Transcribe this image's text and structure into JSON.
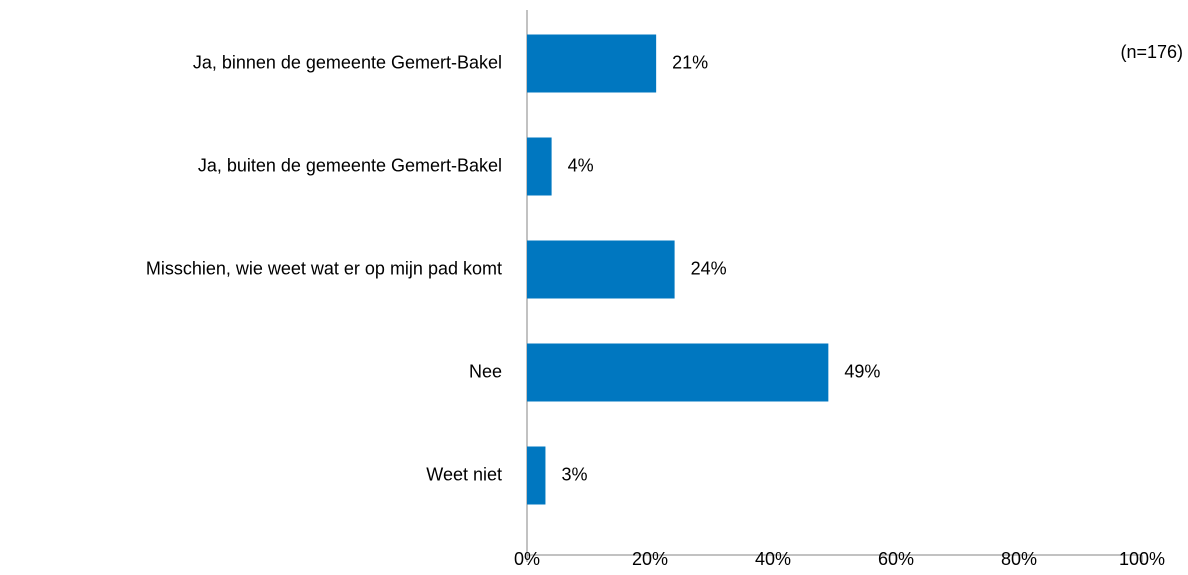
{
  "chart_data": {
    "type": "barh",
    "annotation": "(n=176)",
    "categories": [
      "Ja, binnen de gemeente Gemert-Bakel",
      "Ja, buiten de gemeente Gemert-Bakel",
      "Misschien, wie weet wat er op mijn pad komt",
      "Nee",
      "Weet niet"
    ],
    "values": [
      21,
      4,
      24,
      49,
      3
    ],
    "value_labels": [
      "21%",
      "4%",
      "24%",
      "49%",
      "3%"
    ],
    "color": "#0077c0",
    "xlim": [
      0,
      100
    ],
    "xticks": [
      {
        "value": 0,
        "label": "0%"
      },
      {
        "value": 20,
        "label": "20%"
      },
      {
        "value": 40,
        "label": "40%"
      },
      {
        "value": 60,
        "label": "60%"
      },
      {
        "value": 80,
        "label": "80%"
      },
      {
        "value": 100,
        "label": "100%"
      }
    ],
    "grid": false
  }
}
